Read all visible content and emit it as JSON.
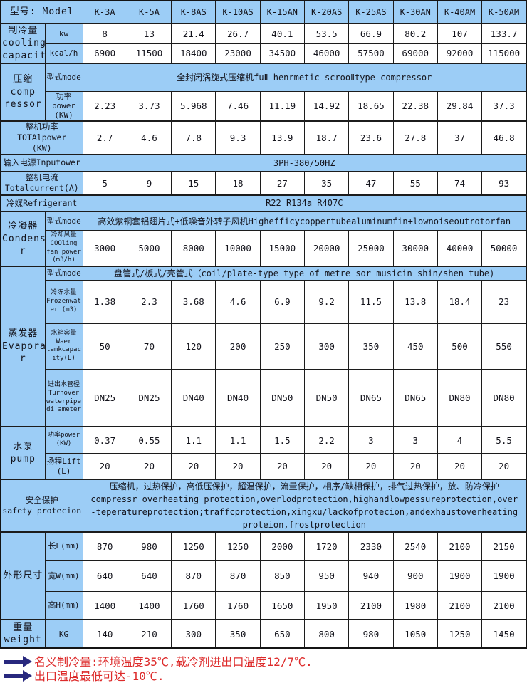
{
  "colors": {
    "cell_blue": "#9ccdf6",
    "border": "#1c1c1c",
    "note_red": "#dd2b2b",
    "arrow_navy": "#28287e",
    "value_bg": "#ffffff",
    "text": "#14141c"
  },
  "table": {
    "header": {
      "label": "型号: Model",
      "models": [
        "K-3A",
        "K-5A",
        "K-8AS",
        "K-10AS",
        "K-15AN",
        "K-20AS",
        "K-25AS",
        "K-30AN",
        "K-40AM",
        "K-50AM"
      ]
    },
    "rows": [
      {
        "name": "cooling-capacity-kw",
        "labels": [
          {
            "text": "制冷量\ncooling\ncapacity",
            "rowspan": 2
          },
          {
            "text": "kw"
          }
        ],
        "values": [
          "8",
          "13",
          "21.4",
          "26.7",
          "40.1",
          "53.5",
          "66.9",
          "80.2",
          "107",
          "133.7"
        ]
      },
      {
        "name": "cooling-capacity-kcal",
        "labels": [
          {
            "text": "kcal/h"
          }
        ],
        "values": [
          "6900",
          "11500",
          "18400",
          "23000",
          "34500",
          "46000",
          "57500",
          "69000",
          "92000",
          "115000"
        ]
      },
      {
        "name": "compressor-mode",
        "labels": [
          {
            "text": "压缩\ncomp\nressor",
            "rowspan": 2
          },
          {
            "text": "型式mode"
          }
        ],
        "span_value": "全封闭涡旋式压缩机fuⅡ-henrmetic scrooⅡtype compressor"
      },
      {
        "name": "compressor-power",
        "labels": [
          {
            "text": "功率\npower\n(KW)"
          }
        ],
        "values": [
          "2.23",
          "3.73",
          "5.968",
          "7.46",
          "11.19",
          "14.92",
          "18.65",
          "22.38",
          "29.84",
          "37.3"
        ]
      },
      {
        "name": "total-power",
        "labels": [
          {
            "text": "整机功率\nTOTAlpower\n(KW)",
            "colspan": 2
          }
        ],
        "values": [
          "2.7",
          "4.6",
          "7.8",
          "9.3",
          "13.9",
          "18.7",
          "23.6",
          "27.8",
          "37",
          "46.8"
        ]
      },
      {
        "name": "input-power",
        "labels": [
          {
            "text": "输入电源Inputower",
            "colspan": 2
          }
        ],
        "span_value": "3PH-380/50HZ"
      },
      {
        "name": "total-current",
        "labels": [
          {
            "text": "整机电流\nTotalcurrent(A)",
            "colspan": 2
          }
        ],
        "values": [
          "5",
          "9",
          "15",
          "18",
          "27",
          "35",
          "47",
          "55",
          "74",
          "93"
        ]
      },
      {
        "name": "refrigerant",
        "labels": [
          {
            "text": "冷媒Refrigerant",
            "colspan": 2
          }
        ],
        "span_value": "R22 R134a R407C"
      },
      {
        "name": "condenser-mode",
        "labels": [
          {
            "text": "冷凝器\nCondense\nr",
            "rowspan": 2
          },
          {
            "text": "型式mode"
          }
        ],
        "span_value": "高效紫铜套铝翅片式+低噪音外转子风机Highefficycoppertubealuminumfin+lownoiseoutrotorfan"
      },
      {
        "name": "condenser-fan-volume",
        "labels": [
          {
            "text": "冷却风量\nCOOling\nfan power\n(m3/h)"
          }
        ],
        "values": [
          "3000",
          "5000",
          "8000",
          "10000",
          "15000",
          "20000",
          "25000",
          "30000",
          "40000",
          "50000"
        ]
      },
      {
        "name": "evaporator-mode",
        "labels": [
          {
            "text": "蒸发器\nEvaporato\nr",
            "rowspan": 4
          },
          {
            "text": "型式mode"
          }
        ],
        "span_value": "盘管式/板式/壳管式（coil/plate-type type of metre sor musicin shin/shen tube)"
      },
      {
        "name": "frozen-water",
        "labels": [
          {
            "text": "冷冻水量\nFrozenwat\ner (m3)"
          }
        ],
        "values": [
          "1.38",
          "2.3",
          "3.68",
          "4.6",
          "6.9",
          "9.2",
          "11.5",
          "13.8",
          "18.4",
          "23"
        ]
      },
      {
        "name": "tank-capacity",
        "labels": [
          {
            "text": "水箱容量\nWaer\ntamkcapac\nity(L)"
          }
        ],
        "values": [
          "50",
          "70",
          "120",
          "200",
          "250",
          "300",
          "350",
          "450",
          "500",
          "550"
        ]
      },
      {
        "name": "pipe-diameter",
        "labels": [
          {
            "text": "进出水管径\nTurnover\nwaterpipe\ndi ameter"
          }
        ],
        "values": [
          "DN25",
          "DN25",
          "DN40",
          "DN40",
          "DN50",
          "DN50",
          "DN65",
          "DN65",
          "DN80",
          "DN80"
        ]
      },
      {
        "name": "pump-power",
        "labels": [
          {
            "text": "水泵\npump",
            "rowspan": 2
          },
          {
            "text": "功率power\n(KW)"
          }
        ],
        "values": [
          "0.37",
          "0.55",
          "1.1",
          "1.1",
          "1.5",
          "2.2",
          "3",
          "3",
          "4",
          "5.5"
        ]
      },
      {
        "name": "pump-lift",
        "labels": [
          {
            "text": "扬程Lift\n(L)"
          }
        ],
        "values": [
          "20",
          "20",
          "20",
          "20",
          "20",
          "20",
          "20",
          "20",
          "20",
          "20"
        ]
      },
      {
        "name": "safety-protection",
        "labels": [
          {
            "text": "安全保护\nsafety protecion",
            "colspan": 2
          }
        ],
        "span_value": "压缩机，过热保护，高低压保护，超温保护，流量保护，相序/缺相保护，排气过热保护，放、防冷保护\ncompressr overheating protection,overlodprotection,highandlowpessureprotection,over-teperatureprotection;traffcprotection,xingxu/lackofprotecion,andexhaustoverheatingproteion,frostprotection"
      },
      {
        "name": "dimension-length",
        "labels": [
          {
            "text": "外形尺寸",
            "rowspan": 3
          },
          {
            "text": "长L(mm)"
          }
        ],
        "values": [
          "870",
          "980",
          "1250",
          "1250",
          "2000",
          "1720",
          "2330",
          "2540",
          "2100",
          "2150"
        ]
      },
      {
        "name": "dimension-width",
        "labels": [
          {
            "text": "宽W(mm)"
          }
        ],
        "values": [
          "640",
          "640",
          "870",
          "870",
          "850",
          "950",
          "940",
          "900",
          "1900",
          "1900"
        ]
      },
      {
        "name": "dimension-height",
        "labels": [
          {
            "text": "高H(mm)"
          }
        ],
        "values": [
          "1400",
          "1400",
          "1760",
          "1760",
          "1650",
          "1950",
          "2100",
          "1980",
          "2100",
          "2100"
        ]
      },
      {
        "name": "weight",
        "labels": [
          {
            "text": "重量\nweight"
          },
          {
            "text": "KG"
          }
        ],
        "values": [
          "140",
          "210",
          "300",
          "350",
          "650",
          "800",
          "980",
          "1050",
          "1250",
          "1450"
        ]
      }
    ]
  },
  "notes": [
    {
      "text": "名义制冷量:环境温度35℃,载冷剂进出口温度12/7℃."
    },
    {
      "text": "出口温度最低可达-10℃."
    }
  ]
}
